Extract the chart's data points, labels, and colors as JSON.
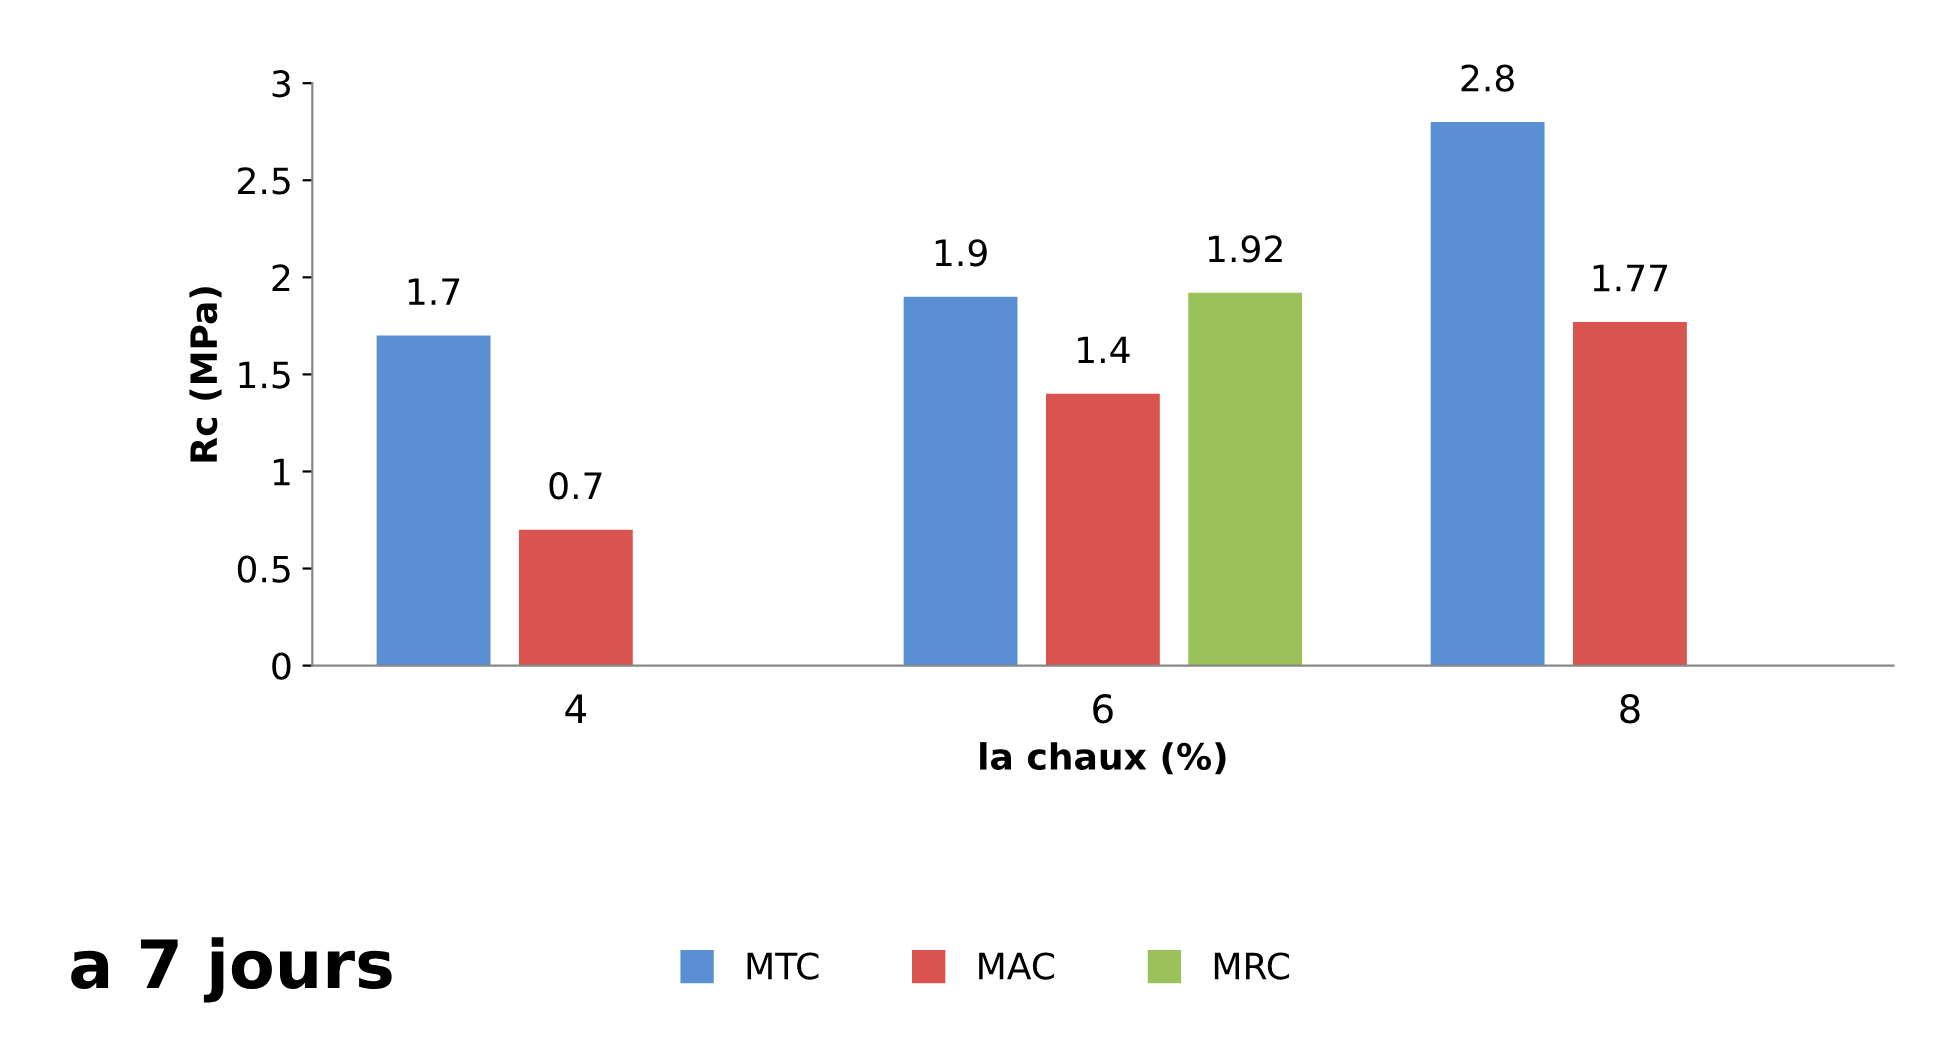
{
  "chart_data": {
    "type": "bar",
    "xlabel": "la chaux (%)",
    "ylabel": "Rc (MPa)",
    "categories": [
      "4",
      "6",
      "8"
    ],
    "series": [
      {
        "name": "MTC",
        "color": "#5b8fd4",
        "values": [
          1.7,
          1.9,
          2.8
        ]
      },
      {
        "name": "MAC",
        "color": "#d9534f",
        "values": [
          0.7,
          1.4,
          1.77
        ]
      },
      {
        "name": "MRC",
        "color": "#9bc25a",
        "values": [
          null,
          1.92,
          null
        ]
      }
    ],
    "ylim": [
      0,
      3
    ],
    "yticks": [
      0,
      0.5,
      1,
      1.5,
      2,
      2.5,
      3
    ],
    "grid": false,
    "legend": "bottom",
    "data_labels": true,
    "annotations": [
      "a 7 jours"
    ]
  }
}
